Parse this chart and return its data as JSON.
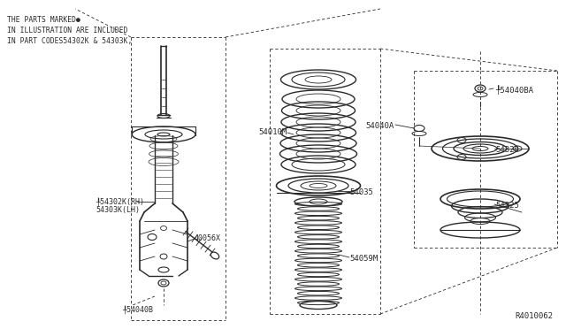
{
  "bg_color": "#ffffff",
  "line_color": "#2a2a2a",
  "note_lines": [
    "THE PARTS MARKED●",
    "IN ILLUSTRATION ARE INCLUDED",
    "IN PART CODES54302K & 54303K,"
  ],
  "ref_code": "R4010062"
}
